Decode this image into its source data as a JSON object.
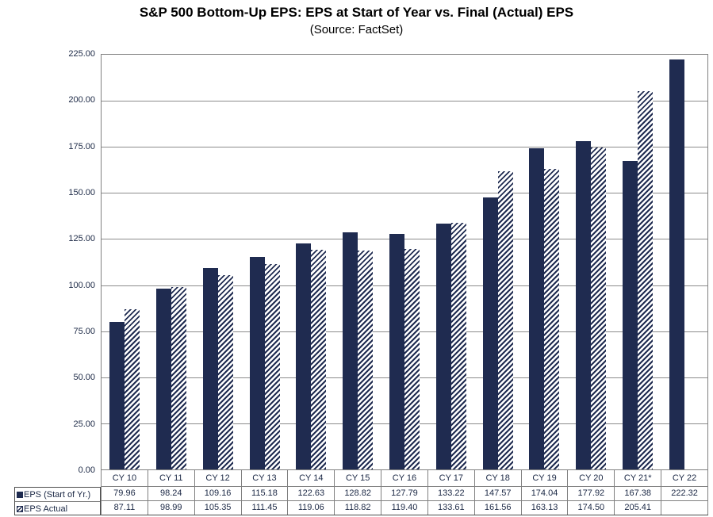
{
  "header": {
    "title": "S&P 500 Bottom-Up EPS: EPS at Start of Year vs. Final (Actual) EPS",
    "subtitle": "(Source: FactSet)"
  },
  "colors": {
    "navy": "#1F2B50",
    "gridline": "#8C8C8C",
    "plot_border": "#808080",
    "table_inner_border": "#808080",
    "table_outer_border": "#4D4D4D",
    "text": "#1A2744"
  },
  "chart_data": {
    "type": "bar",
    "title": "S&P 500 Bottom-Up EPS: EPS at Start of Year vs. Final (Actual) EPS",
    "subtitle": "(Source: FactSet)",
    "categories": [
      "CY 10",
      "CY 11",
      "CY 12",
      "CY 13",
      "CY 14",
      "CY 15",
      "CY 16",
      "CY 17",
      "CY 18",
      "CY 19",
      "CY 20",
      "CY 21*",
      "CY 22"
    ],
    "series": [
      {
        "name": "EPS (Start of Yr.)",
        "style": "solid",
        "values": [
          79.96,
          98.24,
          109.16,
          115.18,
          122.63,
          128.82,
          127.79,
          133.22,
          147.57,
          174.04,
          177.92,
          167.38,
          222.32
        ]
      },
      {
        "name": "EPS Actual",
        "style": "hatched",
        "values": [
          87.11,
          98.99,
          105.35,
          111.45,
          119.06,
          118.82,
          119.4,
          133.61,
          161.56,
          163.13,
          174.5,
          205.41,
          null
        ]
      }
    ],
    "ylim": [
      0,
      225
    ],
    "ytick_step": 25,
    "ytick_labels": [
      "225.00",
      "200.00",
      "175.00",
      "150.00",
      "125.00",
      "100.00",
      "75.00",
      "50.00",
      "25.00",
      "0.00"
    ],
    "grid": "horizontal",
    "legend_position": "table-left",
    "value_format_decimals": 2
  }
}
